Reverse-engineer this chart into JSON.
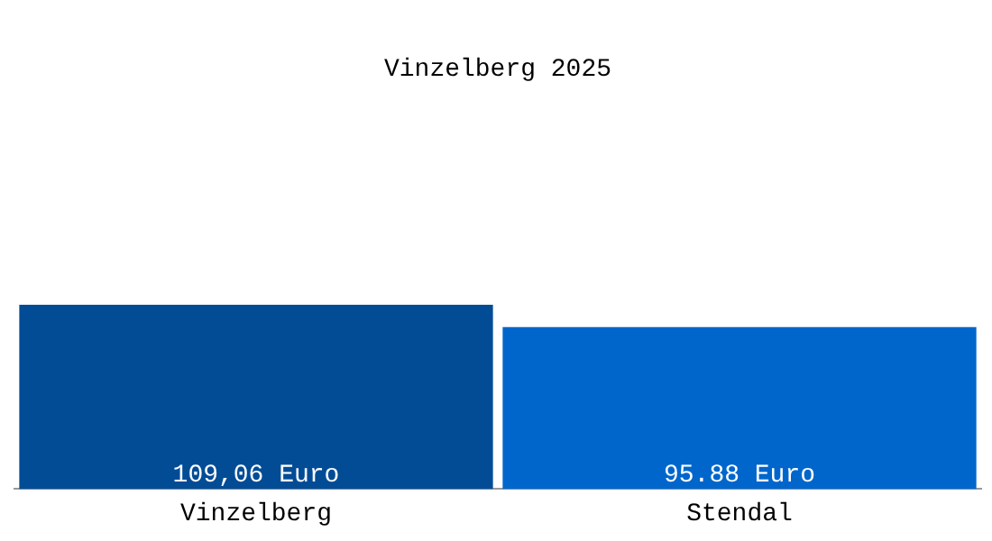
{
  "chart_data": {
    "type": "bar",
    "title": "Vinzelberg 2025",
    "categories": [
      "Vinzelberg",
      "Stendal"
    ],
    "values": [
      109.06,
      95.88
    ],
    "colors": [
      "#024c96",
      "#0066cc"
    ],
    "value_labels": [
      "109,06 Euro",
      "95.88 Euro"
    ],
    "grid": false,
    "legend": false
  }
}
